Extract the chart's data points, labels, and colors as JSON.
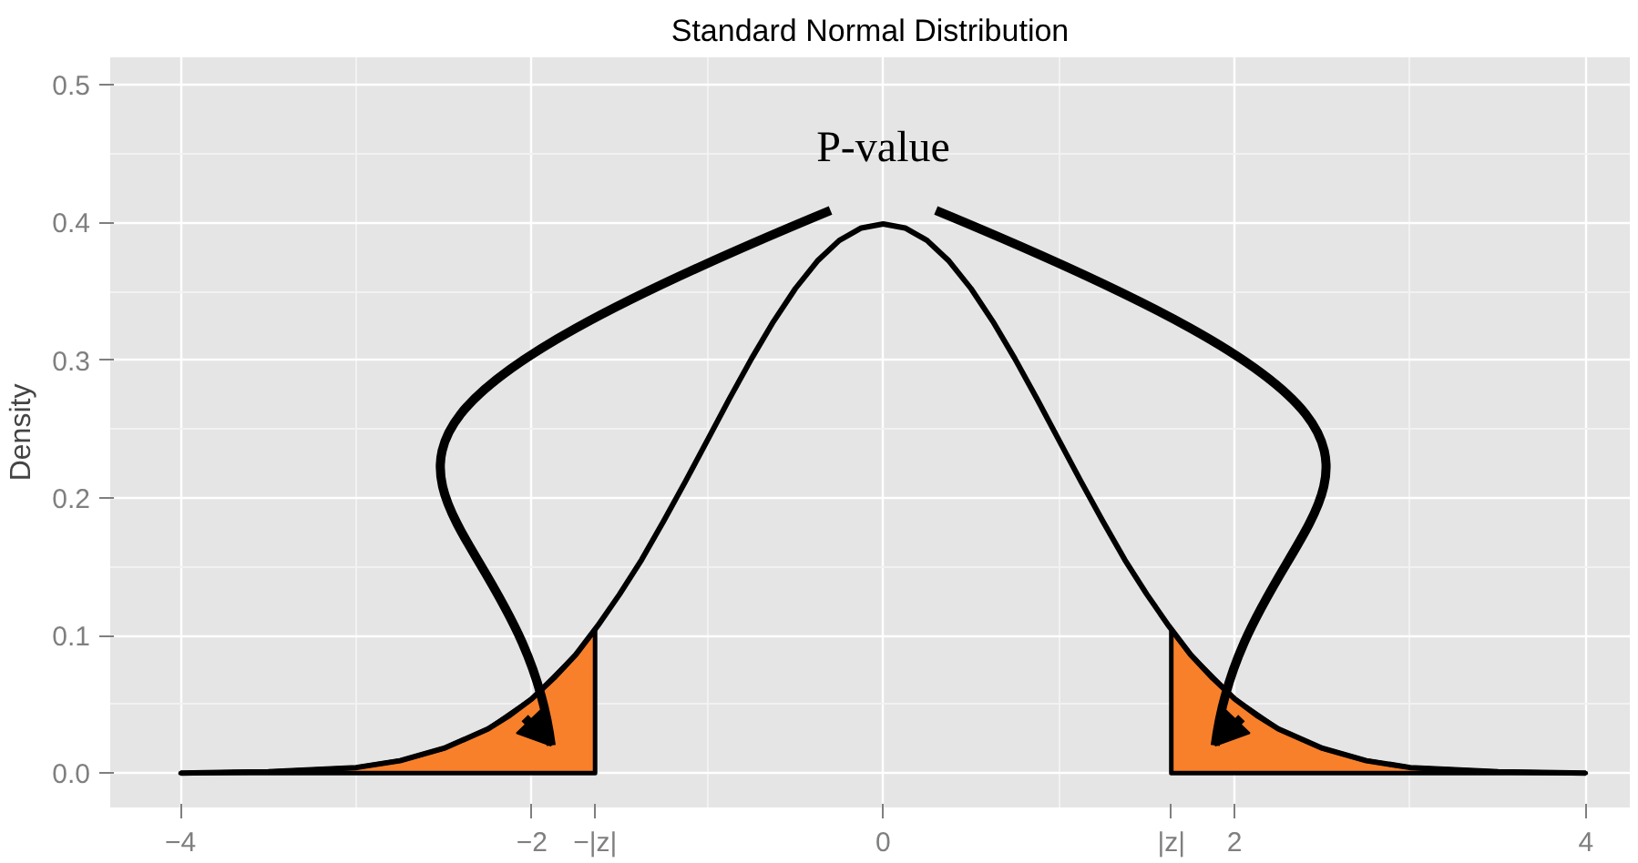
{
  "chart_data": {
    "type": "line",
    "title": "Standard Normal Distribution",
    "ylabel": "Density",
    "x": [
      -4,
      -3.5,
      -3,
      -2.75,
      -2.5,
      -2.25,
      -2.125,
      -2,
      -1.875,
      -1.75,
      -1.625,
      -1.5,
      -1.375,
      -1.25,
      -1.125,
      -1,
      -0.875,
      -0.75,
      -0.625,
      -0.5,
      -0.375,
      -0.25,
      -0.125,
      0,
      0.125,
      0.25,
      0.375,
      0.5,
      0.625,
      0.75,
      0.875,
      1,
      1.125,
      1.25,
      1.375,
      1.5,
      1.625,
      1.75,
      1.875,
      2,
      2.125,
      2.25,
      2.5,
      2.75,
      3,
      3.5,
      4
    ],
    "series": [
      {
        "color": "#000000",
        "values": [
          0,
          0.001,
          0.004,
          0.009,
          0.018,
          0.032,
          0.042,
          0.054,
          0.069,
          0.086,
          0.107,
          0.13,
          0.155,
          0.183,
          0.212,
          0.242,
          0.272,
          0.301,
          0.328,
          0.352,
          0.372,
          0.387,
          0.396,
          0.399,
          0.396,
          0.387,
          0.372,
          0.352,
          0.328,
          0.301,
          0.272,
          0.242,
          0.212,
          0.183,
          0.155,
          0.13,
          0.107,
          0.086,
          0.069,
          0.054,
          0.042,
          0.032,
          0.018,
          0.009,
          0.004,
          0.001,
          0
        ]
      },
      {
        "type": "area",
        "color": "#f8802a",
        "x": [
          -4,
          -3.5,
          -3,
          -2.75,
          -2.5,
          -2.25,
          -2,
          -1.75,
          -1.64
        ],
        "values": [
          0,
          0.001,
          0.004,
          0.009,
          0.018,
          0.032,
          0.054,
          0.086,
          0.104
        ]
      },
      {
        "type": "area",
        "color": "#f8802a",
        "x": [
          1.64,
          1.75,
          2,
          2.25,
          2.5,
          2.75,
          3,
          3.5,
          4
        ],
        "values": [
          0.104,
          0.086,
          0.054,
          0.032,
          0.018,
          0.009,
          0.004,
          0.001,
          0
        ]
      }
    ],
    "annotations": [
      "P-value"
    ],
    "xlim": [
      -4.4,
      4.25
    ],
    "ylim": [
      -0.025,
      0.52
    ],
    "xticks": [
      -4,
      -2,
      {
        "value": -1.64,
        "label": "−|z|"
      },
      0,
      {
        "value": 1.64,
        "label": "|z|"
      },
      2,
      4
    ],
    "yticks": [
      {
        "value": 0,
        "label": "0.0"
      },
      0.1,
      0.2,
      0.3,
      0.4,
      0.5
    ],
    "grid": true
  }
}
